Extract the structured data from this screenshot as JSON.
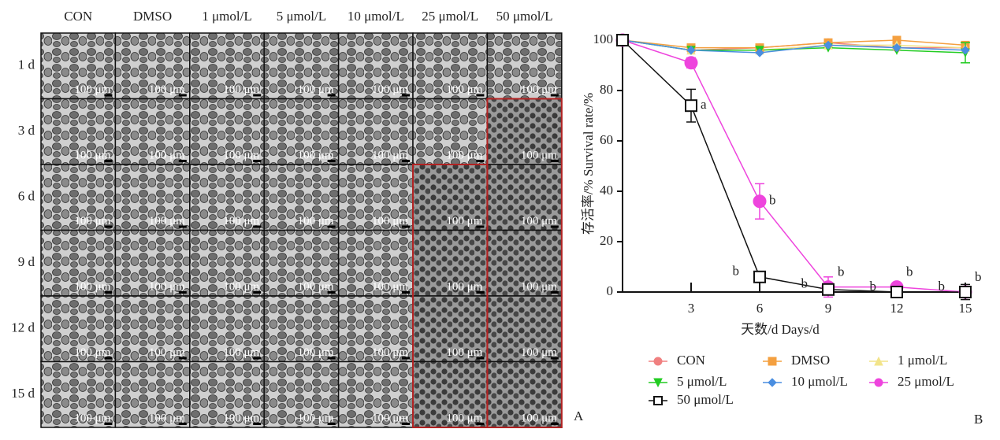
{
  "panel_a": {
    "letter": "A",
    "columns": [
      "CON",
      "DMSO",
      "1 μmol/L",
      "5 μmol/L",
      "10 μmol/L",
      "25 μmol/L",
      "50 μmol/L"
    ],
    "rows": [
      "1 d",
      "3 d",
      "6 d",
      "9 d",
      "12 d",
      "15 d"
    ],
    "scale_bar_label": "100 μm"
  },
  "panel_b": {
    "letter": "B"
  },
  "chart_data": {
    "type": "line",
    "xlabel": "天数/d  Days/d",
    "ylabel": "存活率/%  Survival rate/%",
    "x": [
      0,
      3,
      6,
      9,
      12,
      15
    ],
    "xlim": [
      0,
      15.2
    ],
    "xticks": [
      3,
      6,
      9,
      12,
      15
    ],
    "ylim": [
      0,
      102
    ],
    "yticks": [
      0,
      20,
      40,
      60,
      80,
      100
    ],
    "series": [
      {
        "name": "CON",
        "color": "#f08080",
        "marker": "circle",
        "markersize": 5,
        "values": [
          100,
          96,
          97,
          99,
          97,
          97
        ]
      },
      {
        "name": "DMSO",
        "color": "#f4a040",
        "marker": "square",
        "markersize": 5,
        "values": [
          100,
          97,
          97,
          99,
          100,
          98
        ]
      },
      {
        "name": "1 μmol/L",
        "color": "#f2e48a",
        "marker": "triangle-up",
        "markersize": 5,
        "values": [
          100,
          96,
          96,
          98,
          98,
          97
        ]
      },
      {
        "name": "5 μmol/L",
        "color": "#22cc22",
        "marker": "triangle-down",
        "markersize": 5,
        "values": [
          100,
          96,
          96,
          97,
          96,
          95
        ],
        "errors": [
          null,
          null,
          null,
          null,
          null,
          4
        ]
      },
      {
        "name": "10 μmol/L",
        "color": "#4a8ee0",
        "marker": "diamond",
        "markersize": 5,
        "values": [
          100,
          96,
          95,
          98,
          97,
          96
        ]
      },
      {
        "name": "25 μmol/L",
        "color": "#ee44dd",
        "marker": "circle",
        "markersize": 8,
        "values": [
          100,
          91,
          36,
          2,
          2,
          0
        ],
        "errors": [
          null,
          2,
          7,
          4,
          1,
          1
        ],
        "labels": [
          null,
          null,
          "b",
          "b",
          "b",
          "b"
        ]
      },
      {
        "name": "50 μmol/L",
        "color": "#111111",
        "marker": "open-square",
        "markersize": 7,
        "values": [
          100,
          74,
          6,
          1,
          0,
          0
        ],
        "errors": [
          null,
          6.5,
          null,
          null,
          null,
          3
        ],
        "labels": [
          null,
          "a",
          "b",
          "b",
          "b",
          "b"
        ]
      }
    ]
  }
}
